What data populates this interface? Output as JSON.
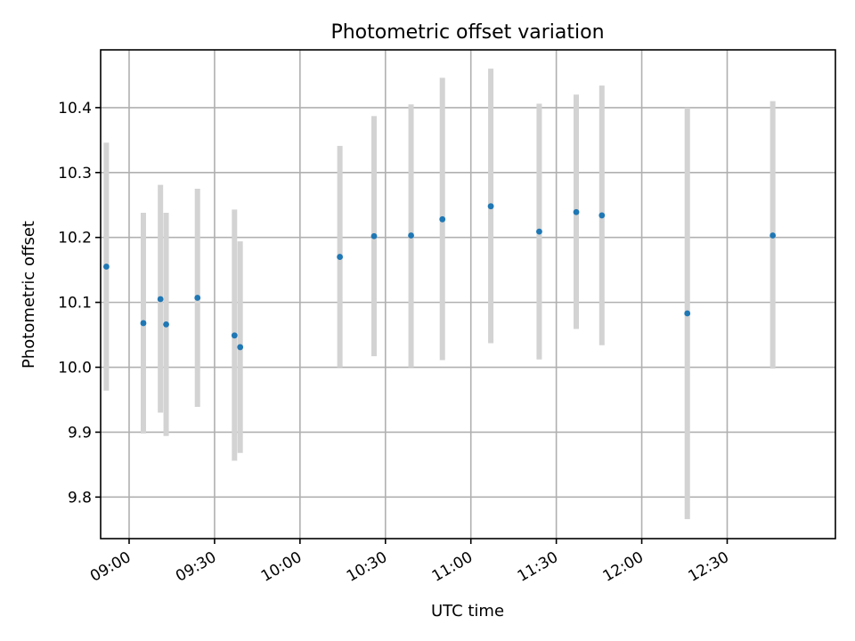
{
  "chart_data": {
    "type": "scatter",
    "title": "Photometric offset variation",
    "xlabel": "UTC time",
    "ylabel": "Photometric offset",
    "x_ticks": [
      "09:00",
      "09:30",
      "10:00",
      "10:30",
      "11:00",
      "11:30",
      "12:00",
      "12:30"
    ],
    "y_ticks": [
      "9.8",
      "9.9",
      "10.0",
      "10.1",
      "10.2",
      "10.3",
      "10.4"
    ],
    "xlim": [
      "08:50",
      "13:08"
    ],
    "ylim": [
      9.736,
      10.489
    ],
    "grid": true,
    "marker_color": "#1f77b4",
    "errorbar_color": "#d3d3d3",
    "points": [
      {
        "x": "08:52",
        "y": 10.155,
        "low": 9.964,
        "high": 10.346
      },
      {
        "x": "09:05",
        "y": 10.068,
        "low": 9.898,
        "high": 10.238
      },
      {
        "x": "09:11",
        "y": 10.105,
        "low": 9.93,
        "high": 10.281
      },
      {
        "x": "09:13",
        "y": 10.066,
        "low": 9.894,
        "high": 10.238
      },
      {
        "x": "09:24",
        "y": 10.107,
        "low": 9.939,
        "high": 10.275
      },
      {
        "x": "09:37",
        "y": 10.049,
        "low": 9.856,
        "high": 10.243
      },
      {
        "x": "09:39",
        "y": 10.031,
        "low": 9.868,
        "high": 10.194
      },
      {
        "x": "10:14",
        "y": 10.17,
        "low": 10.0,
        "high": 10.341
      },
      {
        "x": "10:26",
        "y": 10.202,
        "low": 10.017,
        "high": 10.387
      },
      {
        "x": "10:39",
        "y": 10.203,
        "low": 10.0,
        "high": 10.405
      },
      {
        "x": "10:50",
        "y": 10.228,
        "low": 10.011,
        "high": 10.446
      },
      {
        "x": "11:07",
        "y": 10.248,
        "low": 10.037,
        "high": 10.46
      },
      {
        "x": "11:24",
        "y": 10.209,
        "low": 10.012,
        "high": 10.406
      },
      {
        "x": "11:37",
        "y": 10.239,
        "low": 10.059,
        "high": 10.42
      },
      {
        "x": "11:46",
        "y": 10.234,
        "low": 10.034,
        "high": 10.434
      },
      {
        "x": "12:16",
        "y": 10.083,
        "low": 9.766,
        "high": 10.4
      },
      {
        "x": "12:46",
        "y": 10.203,
        "low": 9.998,
        "high": 10.41
      }
    ]
  }
}
